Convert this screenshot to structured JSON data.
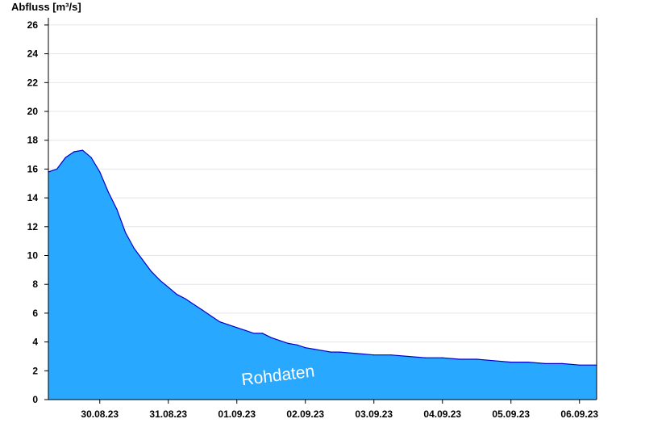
{
  "chart_data": {
    "type": "area",
    "ylabel": "Abfluss [m³/s]",
    "xlabel": "",
    "ylim": [
      0,
      26.5
    ],
    "yticks": [
      0,
      2,
      4,
      6,
      8,
      10,
      12,
      14,
      16,
      18,
      20,
      22,
      24,
      26
    ],
    "xlim": [
      "2023-08-29 18:00",
      "2023-09-06 18:00"
    ],
    "day_labels": [
      "30.08.23",
      "31.08.23",
      "01.09.23",
      "02.09.23",
      "03.09.23",
      "04.09.23",
      "05.09.23",
      "06.09.23"
    ],
    "watermark": "Rohdaten",
    "grid": true,
    "fill_color": "#29a8ff",
    "line_color": "#0000cc",
    "series": [
      {
        "x": [
          "2023-08-29 18:00",
          "2023-08-29 21:00",
          "2023-08-30 00:00",
          "2023-08-30 03:00",
          "2023-08-30 06:00",
          "2023-08-30 09:00",
          "2023-08-30 12:00",
          "2023-08-30 15:00",
          "2023-08-30 18:00",
          "2023-08-30 21:00",
          "2023-08-31 00:00",
          "2023-08-31 03:00",
          "2023-08-31 06:00",
          "2023-08-31 09:00",
          "2023-08-31 12:00",
          "2023-08-31 15:00",
          "2023-08-31 18:00",
          "2023-08-31 21:00",
          "2023-09-01 00:00",
          "2023-09-01 03:00",
          "2023-09-01 06:00",
          "2023-09-01 09:00",
          "2023-09-01 12:00",
          "2023-09-01 15:00",
          "2023-09-01 18:00",
          "2023-09-01 21:00",
          "2023-09-02 00:00",
          "2023-09-02 03:00",
          "2023-09-02 06:00",
          "2023-09-02 09:00",
          "2023-09-02 12:00",
          "2023-09-02 15:00",
          "2023-09-02 18:00",
          "2023-09-02 21:00",
          "2023-09-03 00:00",
          "2023-09-03 06:00",
          "2023-09-03 12:00",
          "2023-09-03 18:00",
          "2023-09-04 00:00",
          "2023-09-04 06:00",
          "2023-09-04 12:00",
          "2023-09-04 18:00",
          "2023-09-05 00:00",
          "2023-09-05 06:00",
          "2023-09-05 12:00",
          "2023-09-05 18:00",
          "2023-09-06 00:00",
          "2023-09-06 06:00",
          "2023-09-06 12:00",
          "2023-09-06 18:00"
        ],
        "y": [
          15.8,
          16.0,
          16.8,
          17.2,
          17.3,
          16.8,
          15.8,
          14.4,
          13.2,
          11.6,
          10.5,
          9.7,
          8.9,
          8.3,
          7.8,
          7.3,
          7.0,
          6.6,
          6.2,
          5.8,
          5.4,
          5.2,
          5.0,
          4.8,
          4.6,
          4.6,
          4.3,
          4.1,
          3.9,
          3.8,
          3.6,
          3.5,
          3.4,
          3.3,
          3.3,
          3.2,
          3.1,
          3.1,
          3.0,
          2.9,
          2.9,
          2.8,
          2.8,
          2.7,
          2.6,
          2.6,
          2.5,
          2.5,
          2.4,
          2.4
        ]
      }
    ]
  }
}
